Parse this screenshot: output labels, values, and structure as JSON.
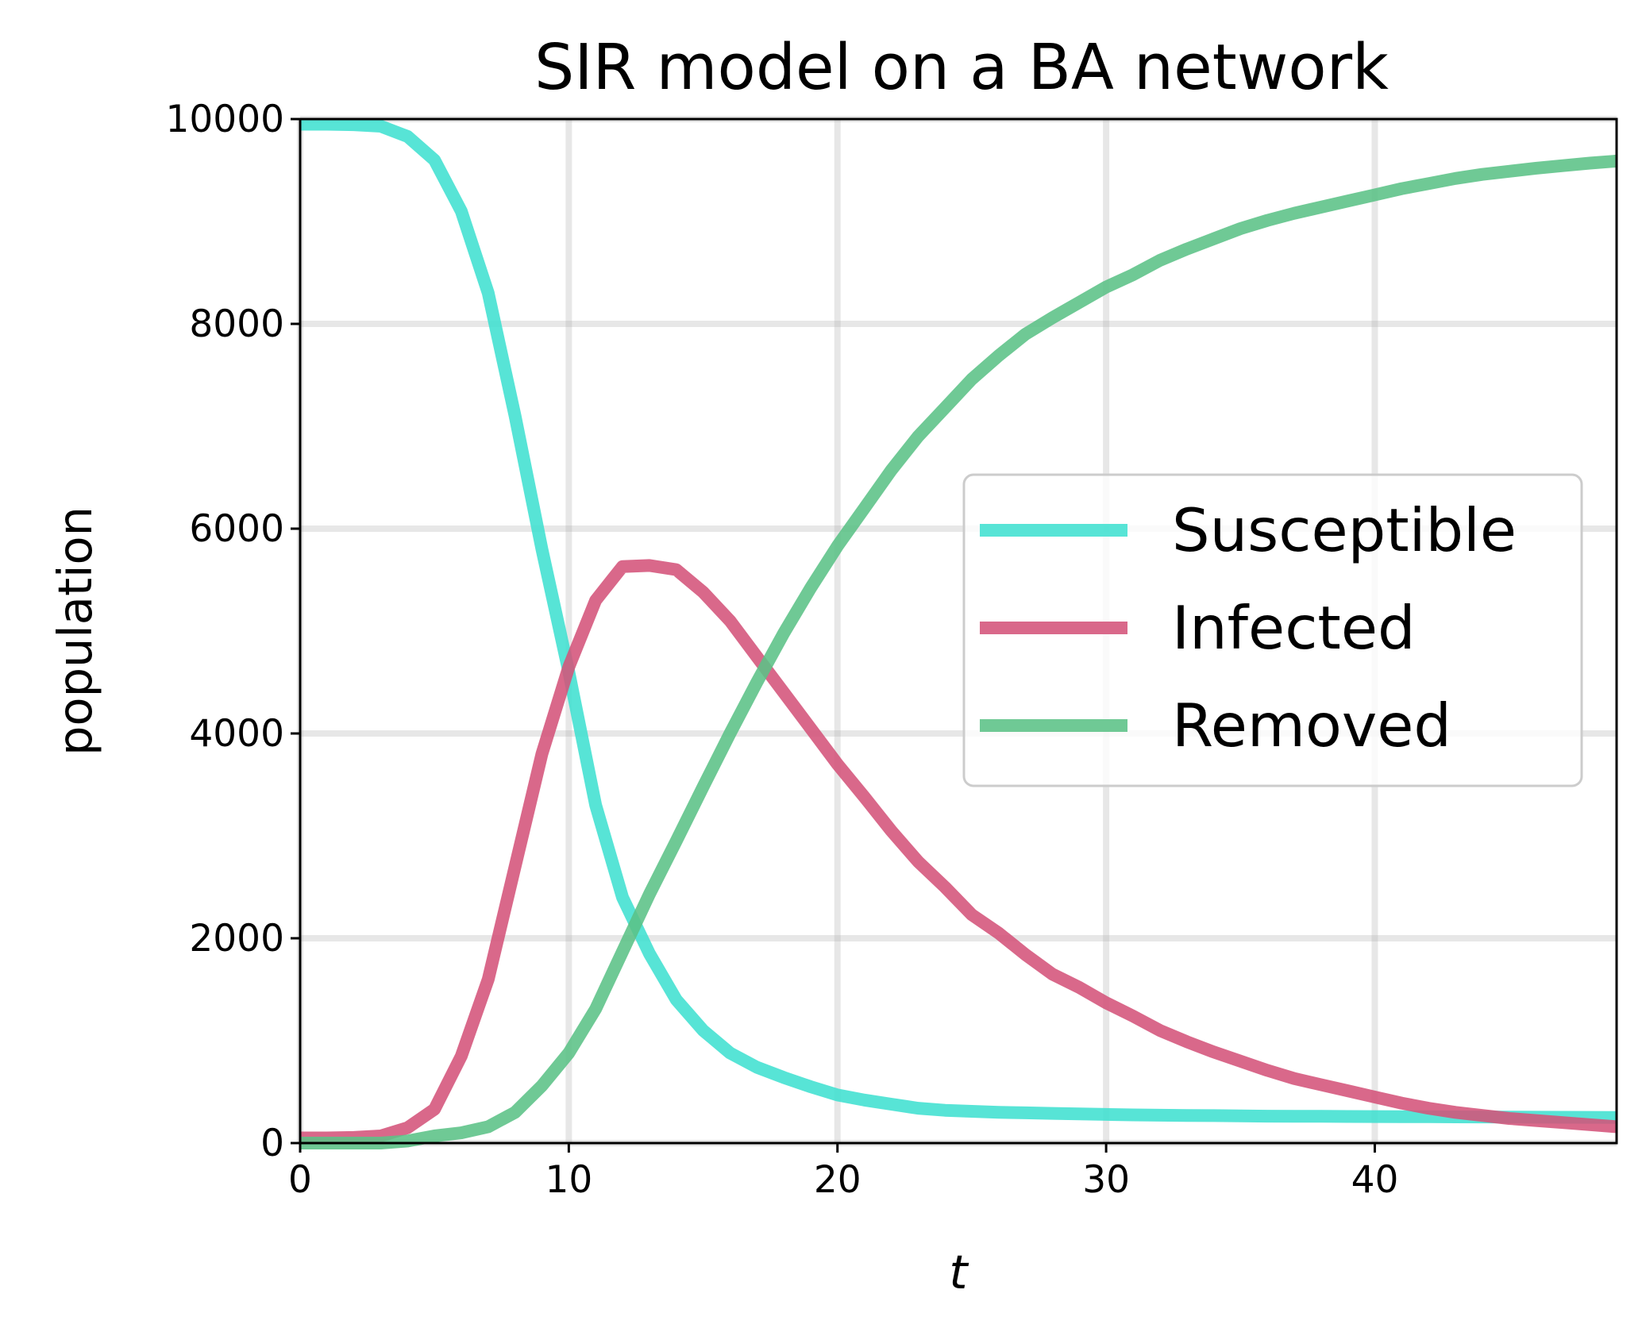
{
  "chart_data": {
    "type": "line",
    "title": "SIR model on a BA network",
    "xlabel": "t",
    "ylabel": "population",
    "xlim": [
      0,
      49
    ],
    "ylim": [
      0,
      10000
    ],
    "xticks": [
      0,
      10,
      20,
      30,
      40
    ],
    "yticks": [
      0,
      2000,
      4000,
      6000,
      8000,
      10000
    ],
    "grid": true,
    "legend_position": "center-right",
    "x": [
      0,
      1,
      2,
      3,
      4,
      5,
      6,
      7,
      8,
      9,
      10,
      11,
      12,
      13,
      14,
      15,
      16,
      17,
      18,
      19,
      20,
      21,
      22,
      23,
      24,
      25,
      26,
      27,
      28,
      29,
      30,
      31,
      32,
      33,
      34,
      35,
      36,
      37,
      38,
      39,
      40,
      41,
      42,
      43,
      44,
      45,
      46,
      47,
      48,
      49
    ],
    "series": [
      {
        "name": "Susceptible",
        "color": "#40E0D0",
        "values": [
          9950,
          9950,
          9945,
          9930,
          9830,
          9600,
          9100,
          8300,
          7100,
          5800,
          4600,
          3300,
          2400,
          1850,
          1400,
          1100,
          880,
          740,
          640,
          550,
          470,
          420,
          380,
          340,
          320,
          310,
          300,
          295,
          290,
          285,
          280,
          275,
          272,
          270,
          268,
          265,
          263,
          262,
          261,
          260,
          259,
          258,
          257,
          256,
          255,
          254,
          253,
          252,
          251,
          250
        ]
      },
      {
        "name": "Infected",
        "color": "#D4537A",
        "values": [
          50,
          50,
          55,
          70,
          150,
          330,
          850,
          1600,
          2700,
          3800,
          4650,
          5300,
          5630,
          5640,
          5600,
          5380,
          5100,
          4750,
          4400,
          4050,
          3700,
          3380,
          3050,
          2750,
          2500,
          2230,
          2050,
          1840,
          1650,
          1520,
          1370,
          1240,
          1100,
          990,
          890,
          800,
          710,
          630,
          570,
          510,
          450,
          390,
          340,
          300,
          270,
          240,
          220,
          200,
          180,
          160
        ]
      },
      {
        "name": "Removed",
        "color": "#5BC286",
        "values": [
          0,
          0,
          0,
          0,
          20,
          70,
          100,
          160,
          300,
          560,
          880,
          1310,
          1870,
          2430,
          2950,
          3480,
          4000,
          4500,
          4980,
          5420,
          5830,
          6200,
          6570,
          6900,
          7180,
          7460,
          7690,
          7900,
          8060,
          8210,
          8360,
          8480,
          8620,
          8730,
          8830,
          8930,
          9010,
          9080,
          9140,
          9200,
          9260,
          9320,
          9370,
          9420,
          9460,
          9490,
          9520,
          9545,
          9570,
          9590
        ]
      }
    ]
  }
}
